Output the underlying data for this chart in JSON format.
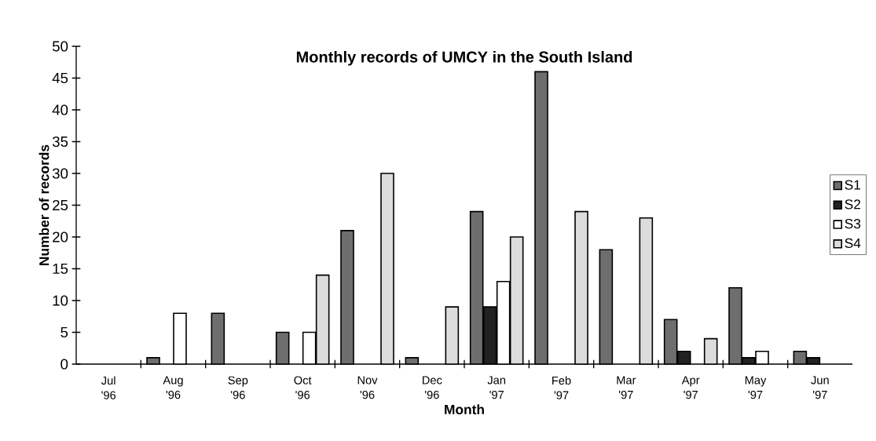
{
  "chart_data": {
    "type": "bar",
    "title": "Monthly records of UMCY in the South Island",
    "xlabel": "Month",
    "ylabel": "Number of records",
    "categories": [
      "Jul '96",
      "Aug '96",
      "Sep '96",
      "Oct '96",
      "Nov '96",
      "Dec '96",
      "Jan '97",
      "Feb '97",
      "Mar '97",
      "Apr '97",
      "May '97",
      "Jun '97"
    ],
    "series": [
      {
        "name": "S1",
        "color": "#6e6e6e",
        "values": [
          null,
          1,
          8,
          5,
          21,
          1,
          24,
          46,
          18,
          7,
          12,
          2
        ]
      },
      {
        "name": "S2",
        "color": "#222222",
        "values": [
          null,
          null,
          null,
          null,
          null,
          null,
          9,
          null,
          null,
          2,
          1,
          1
        ]
      },
      {
        "name": "S3",
        "color": "#ffffff",
        "values": [
          null,
          8,
          null,
          5,
          null,
          null,
          13,
          null,
          null,
          null,
          2,
          null
        ]
      },
      {
        "name": "S4",
        "color": "#dcdcdc",
        "values": [
          null,
          null,
          null,
          14,
          30,
          9,
          20,
          24,
          23,
          4,
          null,
          null
        ]
      }
    ],
    "ylim": [
      0,
      50
    ],
    "yticks": [
      0,
      5,
      10,
      15,
      20,
      25,
      30,
      35,
      40,
      45,
      50
    ],
    "grid": false,
    "legend": "right"
  }
}
